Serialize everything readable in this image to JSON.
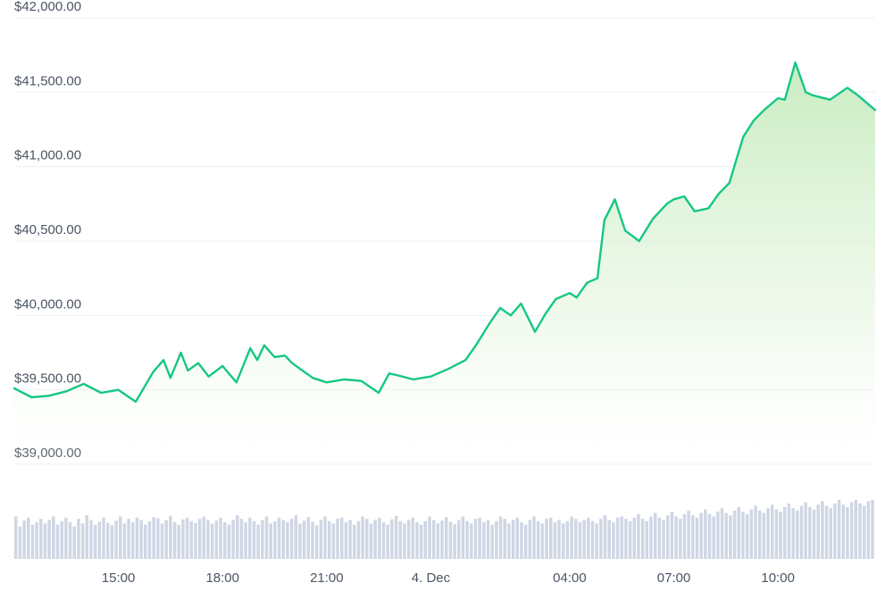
{
  "chart_data": {
    "type": "line",
    "title": "",
    "xlabel": "",
    "ylabel": "",
    "ylim": [
      38850,
      42000
    ],
    "yticks": [
      "$42,000.00",
      "$41,500.00",
      "$41,000.00",
      "$40,500.00",
      "$40,000.00",
      "$39,500.00",
      "$39,000.00"
    ],
    "ytick_values": [
      42000,
      41500,
      41000,
      40500,
      40000,
      39500,
      39000
    ],
    "xlim": [
      12.0,
      36.8
    ],
    "xticks": [
      {
        "label": "15:00",
        "x": 15
      },
      {
        "label": "18:00",
        "x": 18
      },
      {
        "label": "21:00",
        "x": 21
      },
      {
        "label": "4. Dec",
        "x": 24
      },
      {
        "label": "04:00",
        "x": 28
      },
      {
        "label": "07:00",
        "x": 31
      },
      {
        "label": "10:00",
        "x": 34
      }
    ],
    "grid": true,
    "legend": "none",
    "line_color": "#16c784",
    "volume_color": "#cfd6e4",
    "series": [
      {
        "x": [
          12.0,
          12.5,
          13.0,
          13.5,
          14.0,
          14.5,
          15.0,
          15.5,
          16.0,
          16.3,
          16.5,
          16.8,
          17.0,
          17.3,
          17.6,
          18.0,
          18.4,
          18.8,
          19.0,
          19.2,
          19.5,
          19.8,
          20.0,
          20.3,
          20.6,
          21.0,
          21.5,
          22.0,
          22.5,
          22.8,
          23.0,
          23.5,
          24.0,
          24.5,
          25.0,
          25.3,
          25.7,
          26.0,
          26.3,
          26.6,
          27.0,
          27.3,
          27.6,
          28.0,
          28.2,
          28.5,
          28.8,
          29.0,
          29.3,
          29.6,
          30.0,
          30.4,
          30.8,
          31.0,
          31.3,
          31.6,
          32.0,
          32.3,
          32.6,
          33.0,
          33.3,
          33.6,
          34.0,
          34.2,
          34.5,
          34.8,
          35.0,
          35.5,
          36.0,
          36.3,
          36.8
        ],
        "y": [
          39510,
          39450,
          39460,
          39490,
          39540,
          39480,
          39500,
          39420,
          39620,
          39700,
          39580,
          39750,
          39630,
          39680,
          39590,
          39660,
          39550,
          39780,
          39700,
          39800,
          39720,
          39730,
          39680,
          39630,
          39580,
          39550,
          39570,
          39560,
          39480,
          39610,
          39600,
          39570,
          39590,
          39640,
          39700,
          39800,
          39950,
          40050,
          40000,
          40080,
          39890,
          40010,
          40110,
          40150,
          40120,
          40220,
          40250,
          40640,
          40780,
          40570,
          40500,
          40650,
          40750,
          40780,
          40800,
          40700,
          40720,
          40820,
          40890,
          41200,
          41310,
          41380,
          41460,
          41450,
          41700,
          41500,
          41480,
          41450,
          41530,
          41480,
          41380
        ]
      }
    ],
    "volume": [
      72,
      55,
      65,
      70,
      58,
      62,
      68,
      60,
      66,
      72,
      58,
      64,
      70,
      62,
      55,
      68,
      60,
      74,
      66,
      58,
      63,
      70,
      61,
      57,
      65,
      72,
      60,
      68,
      62,
      70,
      66,
      58,
      64,
      71,
      69,
      60,
      66,
      73,
      62,
      58,
      67,
      70,
      64,
      61,
      68,
      72,
      66,
      60,
      65,
      70,
      62,
      58,
      66,
      74,
      68,
      62,
      70,
      64,
      58,
      66,
      72,
      60,
      64,
      70,
      66,
      62,
      68,
      74,
      60,
      65,
      71,
      63,
      57,
      66,
      72,
      64,
      60,
      68,
      70,
      62,
      66,
      58,
      64,
      72,
      68,
      60,
      66,
      70,
      62,
      58,
      67,
      73,
      64,
      60,
      66,
      70,
      62,
      58,
      64,
      72,
      66,
      60,
      65,
      71,
      63,
      59,
      66,
      72,
      64,
      60,
      68,
      70,
      62,
      66,
      58,
      64,
      72,
      68,
      60,
      66,
      70,
      62,
      58,
      66,
      72,
      64,
      60,
      68,
      70,
      62,
      66,
      60,
      64,
      72,
      68,
      62,
      66,
      70,
      64,
      60,
      68,
      74,
      66,
      62,
      70,
      72,
      68,
      64,
      70,
      76,
      68,
      64,
      72,
      78,
      70,
      66,
      74,
      80,
      72,
      68,
      76,
      82,
      74,
      70,
      78,
      84,
      76,
      72,
      80,
      86,
      78,
      74,
      82,
      88,
      80,
      76,
      84,
      90,
      82,
      78,
      86,
      92,
      84,
      80,
      88,
      94,
      86,
      82,
      90,
      96,
      88,
      84,
      92,
      98,
      90,
      86,
      94,
      100,
      92,
      88,
      96,
      100,
      94,
      90,
      98,
      100
    ]
  }
}
